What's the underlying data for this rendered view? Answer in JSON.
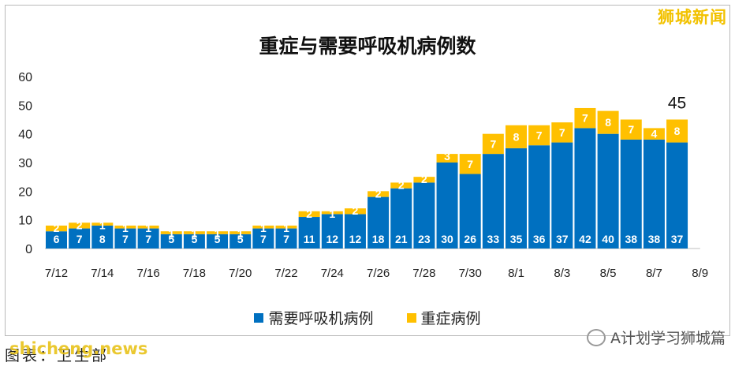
{
  "brand": "狮城新闻",
  "credit_label": "图表：卫生部",
  "watermark_left": "shicheng.news",
  "watermark_right": "A计划学习狮城篇",
  "colors": {
    "ventilator": "#0070c0",
    "severe": "#ffc000",
    "axis_text": "#222222"
  },
  "chart_data": {
    "type": "bar",
    "stacked": true,
    "title": "重症与需要呼吸机病例数",
    "categories": [
      "7/12",
      "7/13",
      "7/14",
      "7/15",
      "7/16",
      "7/17",
      "7/18",
      "7/19",
      "7/20",
      "7/21",
      "7/22",
      "7/23",
      "7/24",
      "7/25",
      "7/26",
      "7/27",
      "7/28",
      "7/29",
      "7/30",
      "7/31",
      "8/1",
      "8/2",
      "8/3",
      "8/4",
      "8/5",
      "8/6",
      "8/7",
      "8/8"
    ],
    "x_tick_labels": [
      "7/12",
      "7/14",
      "7/16",
      "7/18",
      "7/20",
      "7/22",
      "7/24",
      "7/26",
      "7/28",
      "7/30",
      "8/1",
      "8/3",
      "8/5",
      "8/7",
      "8/9"
    ],
    "series": [
      {
        "name": "需要呼吸机病例",
        "values": [
          6,
          7,
          8,
          7,
          7,
          5,
          5,
          5,
          5,
          7,
          7,
          11,
          12,
          12,
          18,
          21,
          23,
          30,
          26,
          33,
          35,
          36,
          37,
          42,
          40,
          38,
          38,
          37
        ]
      },
      {
        "name": "重症病例",
        "values": [
          2,
          2,
          1,
          1,
          1,
          1,
          1,
          1,
          1,
          1,
          1,
          2,
          1,
          2,
          2,
          2,
          2,
          3,
          7,
          7,
          8,
          7,
          7,
          7,
          8,
          7,
          4,
          8
        ]
      }
    ],
    "annotation": {
      "category": "8/8",
      "text": "45"
    },
    "ylim": [
      0,
      60
    ],
    "yticks": [
      0,
      10,
      20,
      30,
      40,
      50,
      60
    ],
    "grid": false,
    "legend": "bottom"
  }
}
